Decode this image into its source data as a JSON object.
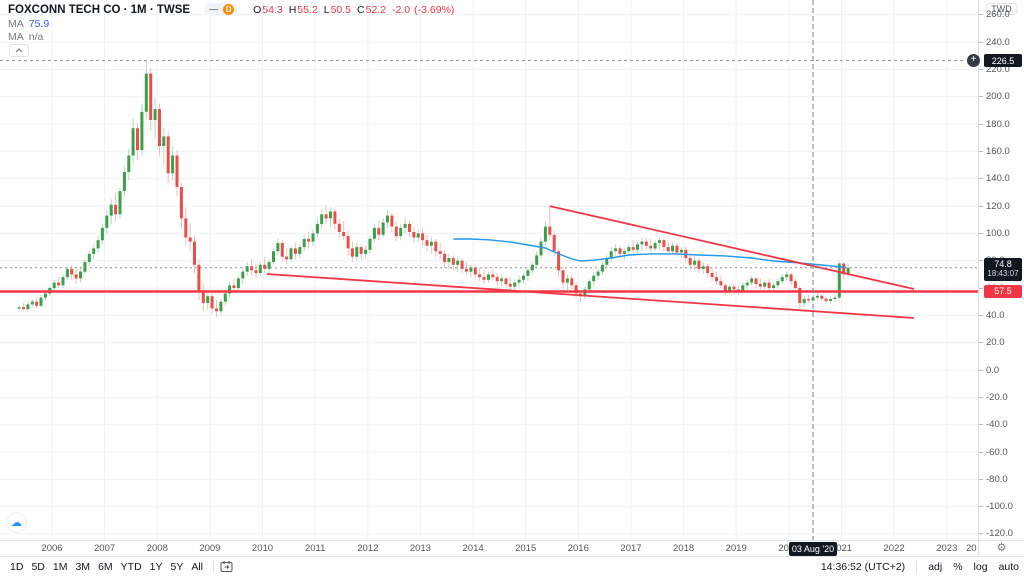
{
  "header": {
    "symbol_title": "FOXCONN TECH CO · 1M · TWSE",
    "market_status": "—",
    "data_badge": "D",
    "ohlc": {
      "o_label": "O",
      "o": "54.3",
      "h_label": "H",
      "h": "55.2",
      "l_label": "L",
      "l": "50.5",
      "c_label": "C",
      "c": "52.2",
      "change": "-2.0",
      "change_pct": "(-3.69%)"
    },
    "ma1_label": "MA",
    "ma1_value": "75.9",
    "ma2_label": "MA",
    "ma2_value": "n/a"
  },
  "price_scale": {
    "currency": "TWD",
    "high_badge": "226.5",
    "last_badge": "74.8",
    "countdown": "18:43:07",
    "hline_badge": "57.5"
  },
  "time_scale": {
    "crosshair_badge": "03 Aug '20",
    "clipped_year": "20"
  },
  "toolbar": {
    "ranges": [
      "1D",
      "5D",
      "1M",
      "3M",
      "6M",
      "YTD",
      "1Y",
      "5Y",
      "All"
    ]
  },
  "status_bar": {
    "clock": "14:36:52 (UTC+2)",
    "adj": "adj",
    "percent": "%",
    "log": "log",
    "auto": "auto"
  },
  "chart_data": {
    "type": "candlestick",
    "symbol": "FOXCONN TECH CO",
    "interval": "1M",
    "exchange": "TWSE",
    "currency": "TWD",
    "start_month": "2005-05",
    "hovered_bar": {
      "date": "03 Aug '20",
      "open": 54.3,
      "high": 55.2,
      "low": 50.5,
      "close": 52.2,
      "change": -2.0,
      "change_pct": -3.69
    },
    "last_price": 74.8,
    "high_marker_price": 226.5,
    "y_axis": {
      "ticks": [
        260,
        240,
        220,
        200,
        180,
        160,
        140,
        120,
        100,
        80,
        60,
        40,
        20,
        0,
        -20,
        -40,
        -60,
        -80,
        -100,
        -120
      ],
      "visible_range": [
        -128,
        272
      ]
    },
    "x_axis": {
      "years": [
        "2006",
        "2007",
        "2008",
        "2009",
        "2010",
        "2011",
        "2012",
        "2013",
        "2014",
        "2015",
        "2016",
        "2017",
        "2018",
        "2019",
        "2020",
        "2021",
        "2022",
        "2023"
      ]
    },
    "ma": {
      "label": "MA",
      "last_value": 75.9,
      "points": [
        [
          99,
          95.9
        ],
        [
          103,
          95.9
        ],
        [
          107,
          95.3
        ],
        [
          112,
          93.8
        ],
        [
          116,
          91.5
        ],
        [
          120,
          89.3
        ],
        [
          123,
          85.0
        ],
        [
          126,
          81.3
        ],
        [
          128,
          79.8
        ],
        [
          131,
          80.4
        ],
        [
          135,
          82.0
        ],
        [
          139,
          84.2
        ],
        [
          144,
          85.0
        ],
        [
          150,
          85.0
        ],
        [
          155,
          84.2
        ],
        [
          161,
          83.5
        ],
        [
          167,
          82.0
        ],
        [
          172,
          79.8
        ],
        [
          178,
          78.3
        ],
        [
          183,
          76.9
        ],
        [
          186,
          75.9
        ],
        [
          188.5,
          75.1
        ]
      ]
    },
    "drawings": {
      "horizontal_line_price": 57.5,
      "wedge_upper": {
        "from": [
          121,
          120.0
        ],
        "to": [
          204,
          59.3
        ]
      },
      "wedge_lower": {
        "from": [
          56.5,
          70.3
        ],
        "to": [
          204,
          38.1
        ]
      }
    },
    "crosshair": {
      "bar_index": 181,
      "date": "03 Aug '20",
      "price": 74.8
    },
    "colors": {
      "up": "#3ca04a",
      "down": "#ea4f47",
      "up_wick": "#b5d9ba",
      "down_wick": "#f4bcb8",
      "ma": "#2196f3",
      "drawing": "#f23645",
      "grid": "#eef1f7",
      "badge_black": "#131722",
      "badge_red": "#f23645"
    },
    "candles": [
      [
        45,
        48,
        43,
        46
      ],
      [
        46,
        49,
        43.5,
        44.5
      ],
      [
        44.5,
        50,
        43,
        48
      ],
      [
        48,
        52,
        46,
        50
      ],
      [
        50,
        53,
        45,
        47
      ],
      [
        47,
        55,
        46,
        53
      ],
      [
        53,
        58,
        51,
        56
      ],
      [
        56,
        62,
        54,
        60
      ],
      [
        60,
        66,
        57,
        64
      ],
      [
        64,
        68,
        60,
        62
      ],
      [
        62,
        70,
        60,
        68
      ],
      [
        68,
        76,
        66,
        74
      ],
      [
        74,
        77,
        66,
        70
      ],
      [
        70,
        73,
        63,
        67
      ],
      [
        67,
        75,
        64,
        72
      ],
      [
        72,
        81,
        70,
        79
      ],
      [
        79,
        87,
        76,
        85
      ],
      [
        85,
        92,
        81,
        89
      ],
      [
        89,
        98,
        86,
        95
      ],
      [
        95,
        107,
        92,
        104
      ],
      [
        104,
        117,
        99,
        113
      ],
      [
        113,
        125,
        107,
        121
      ],
      [
        121,
        129,
        109,
        114
      ],
      [
        114,
        134,
        111,
        131
      ],
      [
        131,
        149,
        127,
        145
      ],
      [
        145,
        162,
        139,
        157
      ],
      [
        157,
        184,
        151,
        177
      ],
      [
        177,
        181,
        154,
        161
      ],
      [
        161,
        195,
        157,
        189
      ],
      [
        189,
        226,
        184,
        217
      ],
      [
        217,
        221,
        175,
        183
      ],
      [
        183,
        199,
        169,
        191
      ],
      [
        191,
        195,
        157,
        164
      ],
      [
        164,
        177,
        149,
        171
      ],
      [
        171,
        174,
        137,
        144
      ],
      [
        144,
        164,
        139,
        157
      ],
      [
        157,
        161,
        127,
        134
      ],
      [
        134,
        137,
        104,
        111
      ],
      [
        111,
        119,
        91,
        97
      ],
      [
        97,
        107,
        87,
        94
      ],
      [
        94,
        98,
        71,
        77
      ],
      [
        77,
        81,
        51,
        57
      ],
      [
        57,
        63,
        43,
        49
      ],
      [
        49,
        56,
        44,
        54
      ],
      [
        54,
        56,
        41,
        45
      ],
      [
        45,
        51,
        39,
        43
      ],
      [
        43,
        52,
        40,
        50
      ],
      [
        50,
        59,
        47,
        56
      ],
      [
        56,
        65,
        53,
        62
      ],
      [
        62,
        67,
        57,
        60
      ],
      [
        60,
        69,
        58,
        67
      ],
      [
        67,
        75,
        63,
        72
      ],
      [
        72,
        79,
        69,
        76
      ],
      [
        76,
        81,
        69,
        73
      ],
      [
        73,
        78,
        67,
        71
      ],
      [
        71,
        79,
        69,
        77
      ],
      [
        77,
        83,
        71,
        74
      ],
      [
        74,
        81,
        70,
        79
      ],
      [
        79,
        89,
        77,
        87
      ],
      [
        87,
        96,
        84,
        93
      ],
      [
        93,
        95,
        79,
        83
      ],
      [
        83,
        89,
        77,
        81
      ],
      [
        81,
        91,
        79,
        89
      ],
      [
        89,
        93,
        81,
        85
      ],
      [
        85,
        92,
        82,
        90
      ],
      [
        90,
        99,
        87,
        96
      ],
      [
        96,
        101,
        89,
        94
      ],
      [
        94,
        103,
        91,
        100
      ],
      [
        100,
        111,
        97,
        107
      ],
      [
        107,
        117,
        103,
        114
      ],
      [
        114,
        121,
        107,
        111
      ],
      [
        111,
        119,
        105,
        116
      ],
      [
        116,
        118,
        103,
        107
      ],
      [
        107,
        111,
        97,
        101
      ],
      [
        101,
        109,
        95,
        98
      ],
      [
        98,
        102,
        84,
        89
      ],
      [
        89,
        94,
        79,
        83
      ],
      [
        83,
        93,
        80,
        90
      ],
      [
        90,
        92,
        81,
        85
      ],
      [
        85,
        91,
        82,
        88
      ],
      [
        88,
        99,
        85,
        96
      ],
      [
        96,
        107,
        93,
        104
      ],
      [
        104,
        109,
        95,
        99
      ],
      [
        99,
        111,
        97,
        108
      ],
      [
        108,
        117,
        104,
        113
      ],
      [
        113,
        115,
        101,
        105
      ],
      [
        105,
        109,
        94,
        98
      ],
      [
        98,
        107,
        95,
        104
      ],
      [
        104,
        111,
        99,
        107
      ],
      [
        107,
        109,
        97,
        101
      ],
      [
        101,
        105,
        93,
        97
      ],
      [
        97,
        103,
        94,
        100
      ],
      [
        100,
        104,
        91,
        95
      ],
      [
        95,
        99,
        87,
        91
      ],
      [
        91,
        97,
        85,
        94
      ],
      [
        94,
        96,
        83,
        87
      ],
      [
        87,
        93,
        81,
        85
      ],
      [
        85,
        87,
        75,
        79
      ],
      [
        79,
        85,
        74,
        82
      ],
      [
        82,
        84,
        73,
        77
      ],
      [
        77,
        83,
        72,
        80
      ],
      [
        80,
        82,
        71,
        74
      ],
      [
        74,
        79,
        69,
        72
      ],
      [
        72,
        77,
        68,
        75
      ],
      [
        75,
        77,
        67,
        70
      ],
      [
        70,
        75,
        65,
        68
      ],
      [
        68,
        73,
        63,
        66
      ],
      [
        66,
        72,
        64,
        70
      ],
      [
        70,
        74,
        66,
        68
      ],
      [
        68,
        71,
        62,
        65
      ],
      [
        65,
        70,
        61,
        67
      ],
      [
        67,
        69,
        60,
        63
      ],
      [
        63,
        68,
        59,
        61
      ],
      [
        61,
        67,
        57,
        64
      ],
      [
        64,
        69,
        61,
        66
      ],
      [
        66,
        71,
        63,
        69
      ],
      [
        69,
        75,
        65,
        73
      ],
      [
        73,
        79,
        70,
        77
      ],
      [
        77,
        87,
        74,
        84
      ],
      [
        84,
        97,
        81,
        94
      ],
      [
        94,
        109,
        91,
        105
      ],
      [
        105,
        120,
        95,
        99
      ],
      [
        99,
        102,
        83,
        87
      ],
      [
        87,
        89,
        68,
        73
      ],
      [
        73,
        76,
        60,
        64
      ],
      [
        64,
        70,
        58,
        67
      ],
      [
        67,
        69,
        59,
        62
      ],
      [
        62,
        64,
        53,
        56
      ],
      [
        56,
        58,
        50,
        54
      ],
      [
        54,
        61,
        52,
        59
      ],
      [
        59,
        67,
        57,
        65
      ],
      [
        65,
        72,
        62,
        69
      ],
      [
        69,
        74,
        66,
        72
      ],
      [
        72,
        79,
        70,
        77
      ],
      [
        77,
        84,
        74,
        82
      ],
      [
        82,
        90,
        79,
        87
      ],
      [
        87,
        92,
        84,
        89
      ],
      [
        89,
        91,
        82,
        85
      ],
      [
        85,
        89,
        81,
        87
      ],
      [
        87,
        92,
        84,
        90
      ],
      [
        90,
        95,
        85,
        88
      ],
      [
        88,
        94,
        84,
        92
      ],
      [
        92,
        97,
        87,
        94
      ],
      [
        94,
        97,
        88,
        91
      ],
      [
        91,
        96,
        86,
        89
      ],
      [
        89,
        95,
        87,
        93
      ],
      [
        93,
        97,
        88,
        95
      ],
      [
        95,
        96,
        87,
        90
      ],
      [
        90,
        94,
        84,
        87
      ],
      [
        87,
        93,
        85,
        91
      ],
      [
        91,
        93,
        83,
        86
      ],
      [
        86,
        90,
        82,
        88
      ],
      [
        88,
        90,
        78,
        82
      ],
      [
        82,
        85,
        74,
        77
      ],
      [
        77,
        83,
        73,
        80
      ],
      [
        80,
        82,
        71,
        74
      ],
      [
        74,
        79,
        70,
        76
      ],
      [
        76,
        78,
        68,
        71
      ],
      [
        71,
        75,
        65,
        68
      ],
      [
        68,
        72,
        62,
        65
      ],
      [
        65,
        69,
        60,
        62
      ],
      [
        62,
        64,
        55,
        58
      ],
      [
        58,
        63,
        56,
        61
      ],
      [
        61,
        63,
        55,
        59
      ],
      [
        59,
        62,
        55,
        58
      ],
      [
        58,
        64,
        56,
        62
      ],
      [
        62,
        66,
        59,
        64
      ],
      [
        64,
        69,
        62,
        67
      ],
      [
        67,
        68,
        60,
        63
      ],
      [
        63,
        67,
        59,
        61
      ],
      [
        61,
        66,
        59,
        64
      ],
      [
        64,
        67,
        58,
        60
      ],
      [
        60,
        64,
        57,
        62
      ],
      [
        62,
        67,
        60,
        65
      ],
      [
        65,
        70,
        63,
        68
      ],
      [
        68,
        72,
        65,
        70
      ],
      [
        70,
        71,
        62,
        65
      ],
      [
        65,
        67,
        57,
        60
      ],
      [
        60,
        61,
        44,
        49
      ],
      [
        49,
        54,
        46,
        52
      ],
      [
        52,
        55,
        49,
        51
      ],
      [
        51,
        55,
        49,
        53
      ],
      [
        53,
        57,
        51,
        54.3
      ],
      [
        54.3,
        55.2,
        50.5,
        52.2
      ],
      [
        52.2,
        53.5,
        48.5,
        50.5
      ],
      [
        50.5,
        53.5,
        48.5,
        52
      ],
      [
        52,
        56,
        50,
        53
      ],
      [
        53,
        80,
        51,
        78
      ],
      [
        78,
        79,
        66,
        70
      ],
      [
        70,
        78,
        68,
        74.8
      ]
    ]
  }
}
